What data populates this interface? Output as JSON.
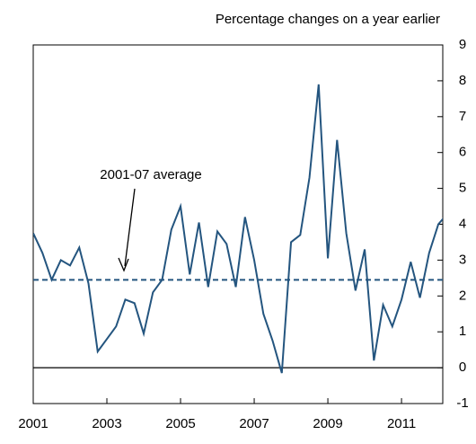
{
  "chart_data": {
    "type": "line",
    "title": "Percentage changes on a year earlier",
    "annotation": "2001-07 average",
    "x": [
      2001,
      2001.25,
      2001.5,
      2001.75,
      2002,
      2002.25,
      2002.5,
      2002.75,
      2003,
      2003.25,
      2003.5,
      2003.75,
      2004,
      2004.25,
      2004.5,
      2004.75,
      2005,
      2005.25,
      2005.5,
      2005.75,
      2006,
      2006.25,
      2006.5,
      2006.75,
      2007,
      2007.25,
      2007.5,
      2007.75,
      2008,
      2008.25,
      2008.5,
      2008.75,
      2009,
      2009.25,
      2009.5,
      2009.75,
      2010,
      2010.25,
      2010.5,
      2010.75,
      2011,
      2011.25,
      2011.5,
      2011.75,
      2012,
      2012.25
    ],
    "values": [
      3.75,
      3.2,
      2.45,
      3.0,
      2.85,
      3.35,
      2.35,
      0.45,
      0.8,
      1.15,
      1.9,
      1.8,
      0.95,
      2.1,
      2.45,
      3.85,
      4.5,
      2.6,
      4.05,
      2.25,
      3.8,
      3.45,
      2.25,
      4.2,
      3.0,
      1.5,
      0.75,
      -0.15,
      3.5,
      3.7,
      5.3,
      7.9,
      3.05,
      6.35,
      3.75,
      2.15,
      3.3,
      0.2,
      1.75,
      1.15,
      1.9,
      2.95,
      1.95,
      3.2,
      4.0,
      4.3
    ],
    "color": "#24557f",
    "average": 2.45,
    "xlim": [
      2001,
      2012.12
    ],
    "xticks": [
      2001,
      2003,
      2005,
      2007,
      2009,
      2011
    ],
    "ylim": [
      -1,
      9
    ],
    "yticks": [
      -1,
      0,
      1,
      2,
      3,
      4,
      5,
      6,
      7,
      8,
      9
    ]
  }
}
